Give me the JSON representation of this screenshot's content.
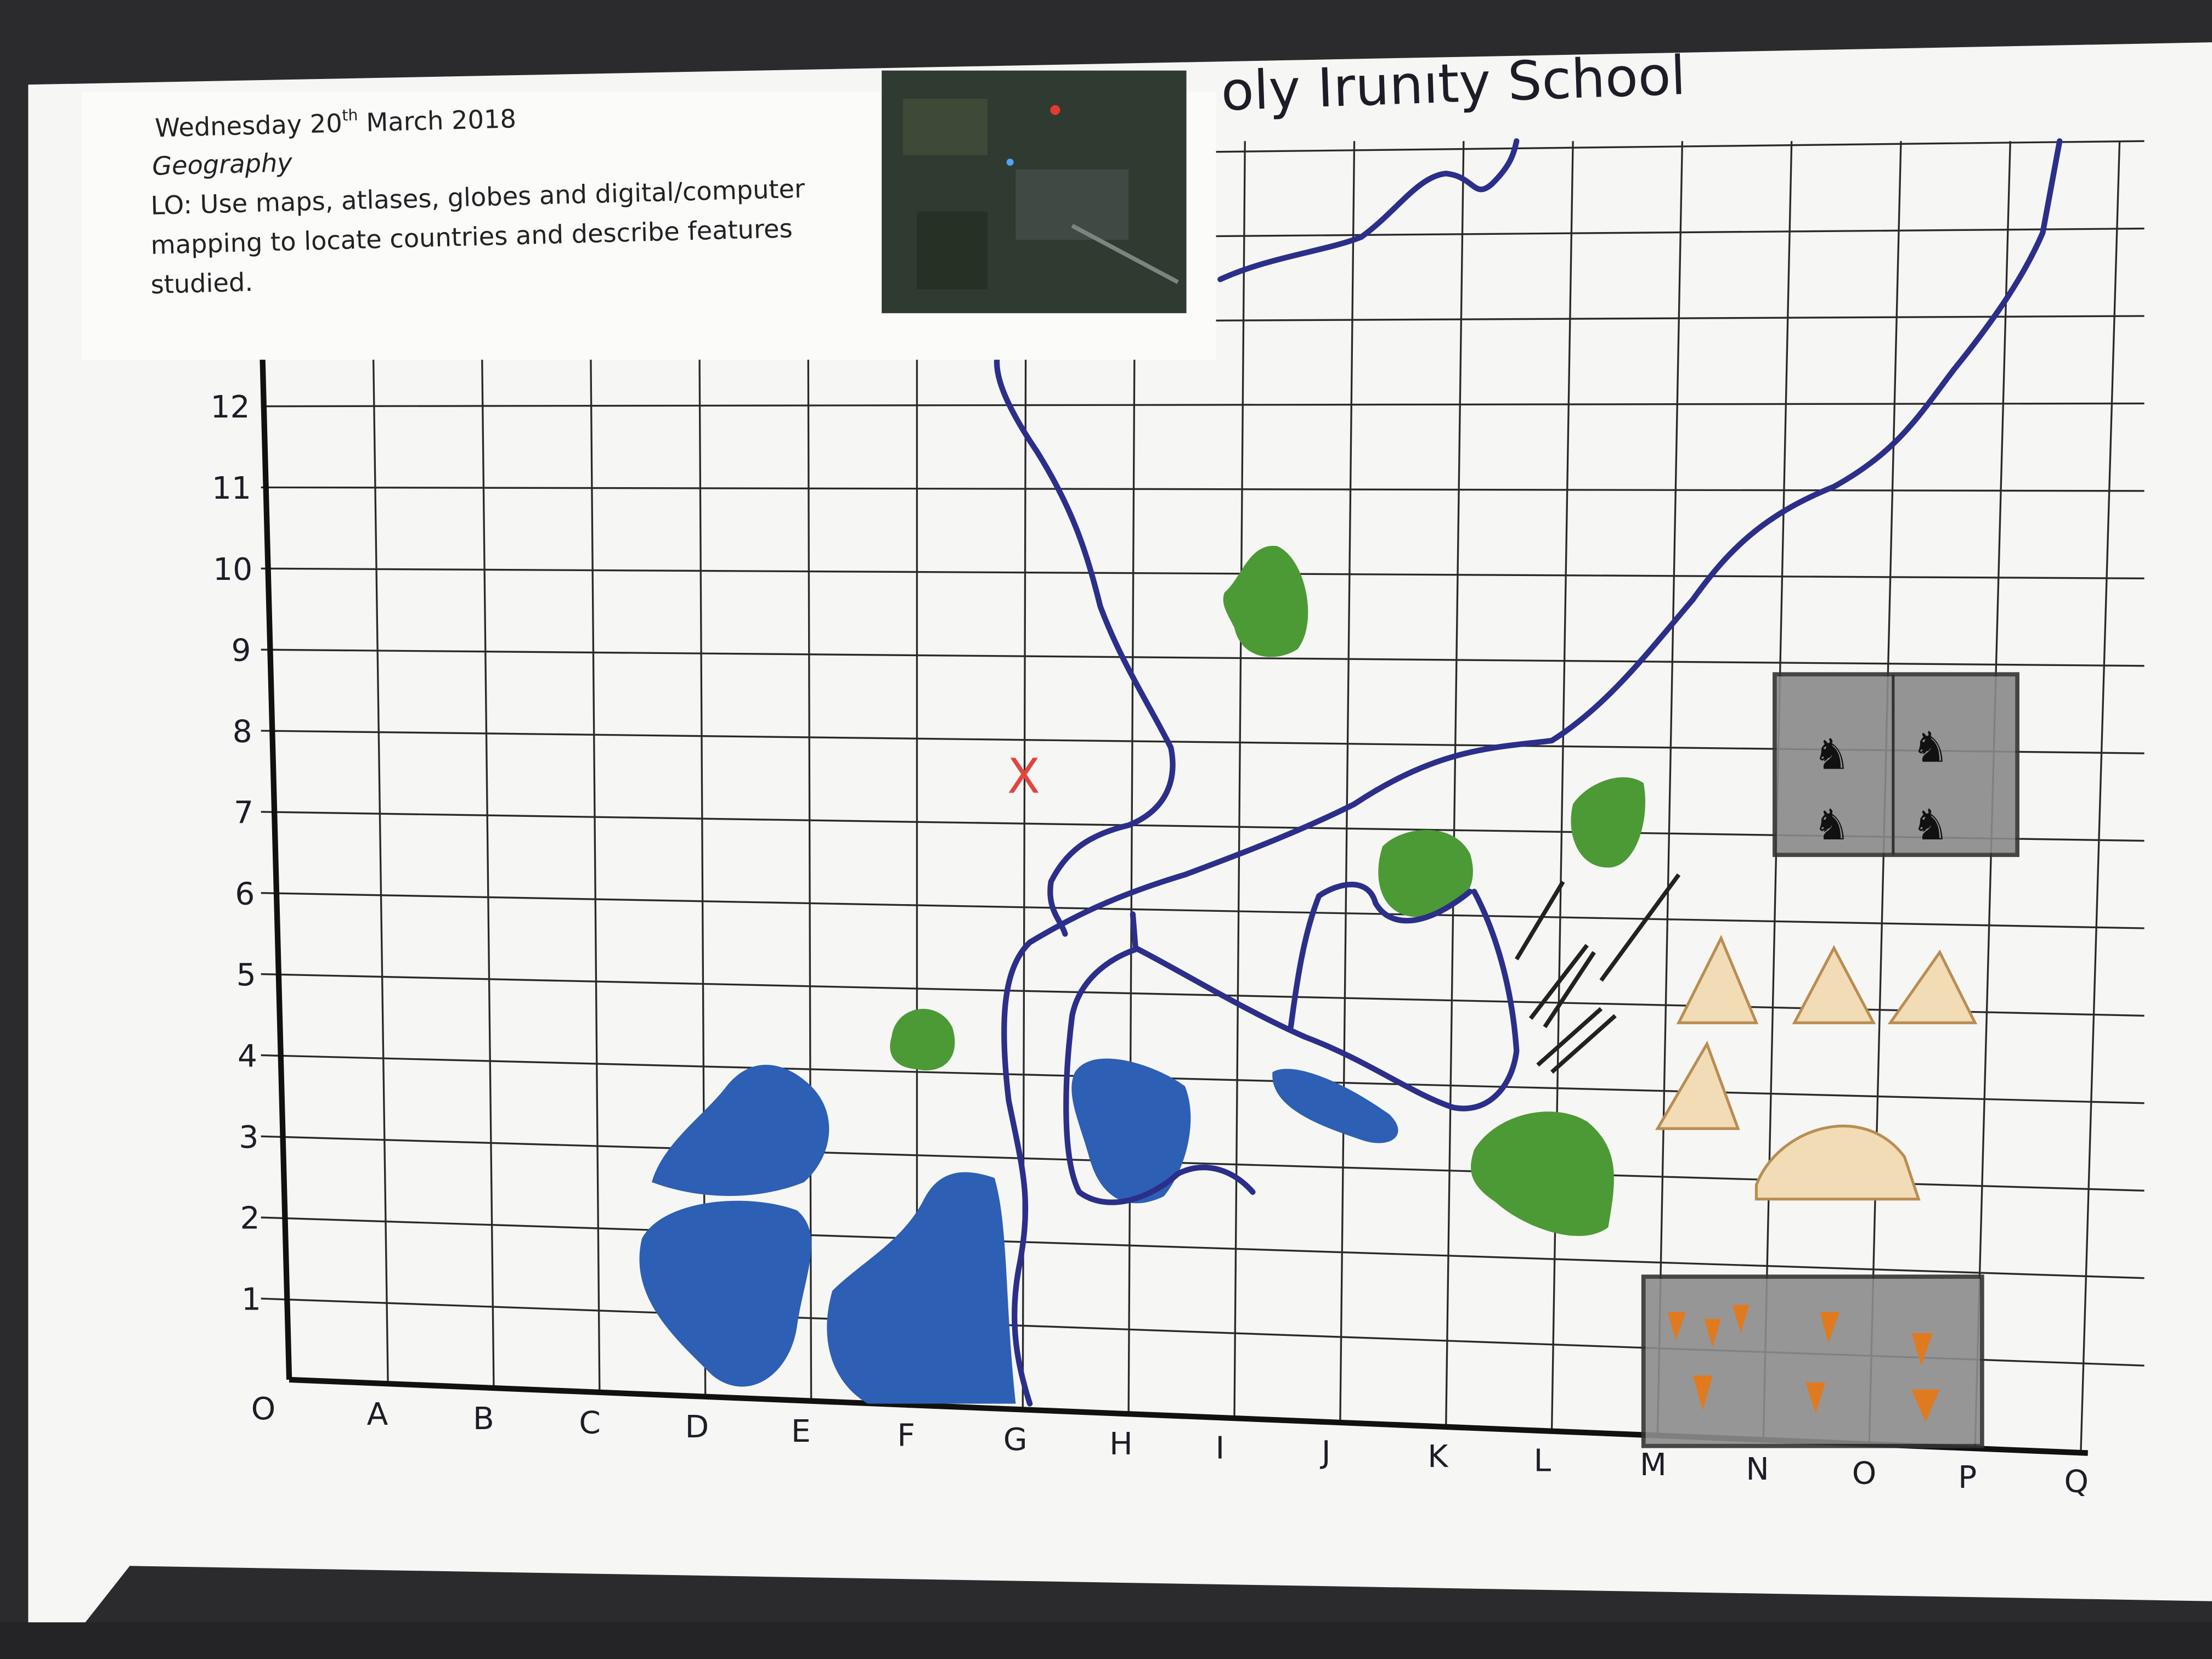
{
  "header_card": {
    "date_prefix": "Wednesday 20",
    "date_suffix": "th",
    "date_rest": " March 2018",
    "subject": "Geography",
    "objective_lines": [
      "LO: Use maps, atlases, globes and digital/computer",
      "mapping to locate countries and describe features",
      "studied."
    ]
  },
  "map_title": "oly  Irunıty School",
  "grid": {
    "row_labels": [
      "1",
      "2",
      "3",
      "4",
      "5",
      "6",
      "7",
      "8",
      "9",
      "10",
      "11",
      "12"
    ],
    "origin_label": "O",
    "column_labels": [
      "A",
      "B",
      "C",
      "D",
      "E",
      "F",
      "G",
      "H",
      "I",
      "J",
      "K",
      "L",
      "M",
      "N",
      "O",
      "P",
      "Q"
    ]
  },
  "marker_label": "X",
  "colors": {
    "river": "#2b2f8a",
    "lake": "#2d5fb5",
    "woodland": "#4c9a36",
    "marker": "#e0463e",
    "field": "#8a8a8a",
    "tent": "#d9b27a",
    "paper": "#f7f7f5",
    "background": "#2b2b2e"
  }
}
